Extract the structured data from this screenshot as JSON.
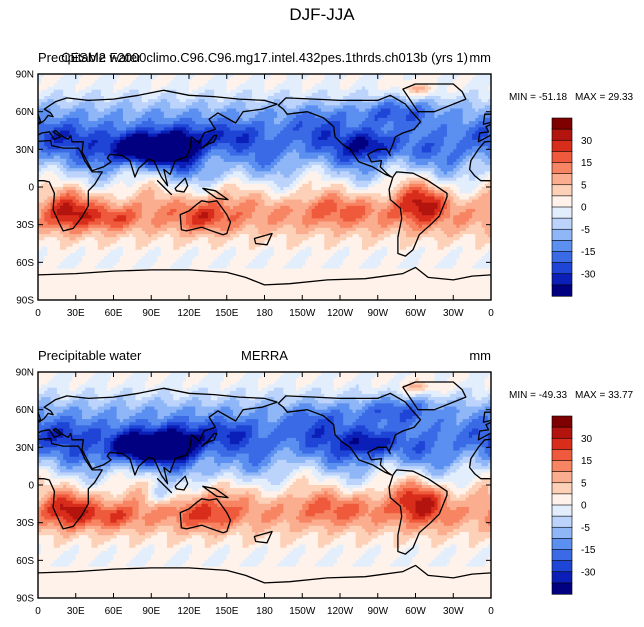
{
  "figure_title": "DJF-JJA",
  "colors": {
    "levels": [
      "#000080",
      "#0b1fb8",
      "#1f45d6",
      "#3a6ae6",
      "#5b8ff0",
      "#8fb6f7",
      "#bcd4fb",
      "#e3eefd",
      "#fff2ea",
      "#fdd0b8",
      "#fbae8f",
      "#f78563",
      "#ef5a3c",
      "#d92d1c",
      "#b3150e",
      "#7f0000"
    ],
    "land_line": "#000000",
    "frame": "#000000"
  },
  "colorbar": {
    "tick_labels": [
      "30",
      "15",
      "5",
      "0",
      "-5",
      "-15",
      "-30"
    ]
  },
  "chart_data": [
    {
      "type": "heatmap",
      "left_title": "Precipitable water",
      "center_title": "CESM2 F2000climo.C96.C96.mg17.intel.432pes.1thrds.ch013b (yrs 1)",
      "units": "mm",
      "min_label": "MIN = -51.18",
      "max_label": "MAX =  29.33",
      "min": -51.18,
      "max": 29.33,
      "xlabels": [
        "0",
        "30E",
        "60E",
        "90E",
        "120E",
        "150E",
        "180",
        "150W",
        "120W",
        "90W",
        "60W",
        "30W",
        "0"
      ],
      "ylabels": [
        "90N",
        "60N",
        "30N",
        "0",
        "30S",
        "60S",
        "90S"
      ],
      "xlim": [
        0,
        360
      ],
      "ylim": [
        -90,
        90
      ]
    },
    {
      "type": "heatmap",
      "left_title": "Precipitable water",
      "center_title": "MERRA",
      "units": "mm",
      "min_label": "MIN = -49.33",
      "max_label": "MAX =  33.77",
      "min": -49.33,
      "max": 33.77,
      "xlabels": [
        "0",
        "30E",
        "60E",
        "90E",
        "120E",
        "150E",
        "180",
        "150W",
        "120W",
        "90W",
        "60W",
        "30W",
        "0"
      ],
      "ylabels": [
        "90N",
        "60N",
        "30N",
        "0",
        "30S",
        "60S",
        "90S"
      ],
      "xlim": [
        0,
        360
      ],
      "ylim": [
        -90,
        90
      ]
    }
  ]
}
